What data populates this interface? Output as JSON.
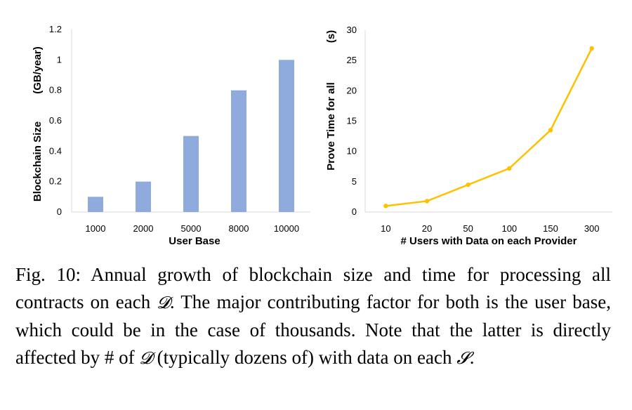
{
  "chart_data": [
    {
      "type": "bar",
      "categories": [
        "1000",
        "2000",
        "5000",
        "8000",
        "10000"
      ],
      "values": [
        0.1,
        0.2,
        0.5,
        0.8,
        1.0
      ],
      "xlabel": "User Base",
      "ylabel": "Blockchain Size",
      "ylabel_unit": "(GB/year)",
      "ylim": [
        0,
        1.2
      ],
      "yticks": [
        "0",
        "0.2",
        "0.4",
        "0.6",
        "0.8",
        "1",
        "1.2"
      ],
      "color": "#8faadc"
    },
    {
      "type": "line",
      "categories": [
        "10",
        "20",
        "50",
        "100",
        "150",
        "300"
      ],
      "values": [
        1.0,
        1.8,
        4.5,
        7.2,
        13.5,
        27.0
      ],
      "xlabel": "# Users with Data on each Provider",
      "ylabel": "Prove Time for all",
      "ylabel_unit": "(s)",
      "ylim": [
        0,
        30
      ],
      "yticks": [
        "0",
        "5",
        "10",
        "15",
        "20",
        "25",
        "30"
      ],
      "color": "#ffc000"
    }
  ],
  "caption": {
    "line1_pre": "Fig. 10: Annual growth of blockchain size and time for",
    "line2_pre": "processing all contracts on each ",
    "symbol_d": "𝓓",
    "line2_post": ". The major contributing",
    "line3": "factor for both is the user base, which could be in the case of",
    "line4": "thousands. Note that the latter is directly affected by # of ",
    "line5_pre": "(typically dozens of) with data on each ",
    "symbol_s": "𝓢",
    "line5_post": "."
  }
}
